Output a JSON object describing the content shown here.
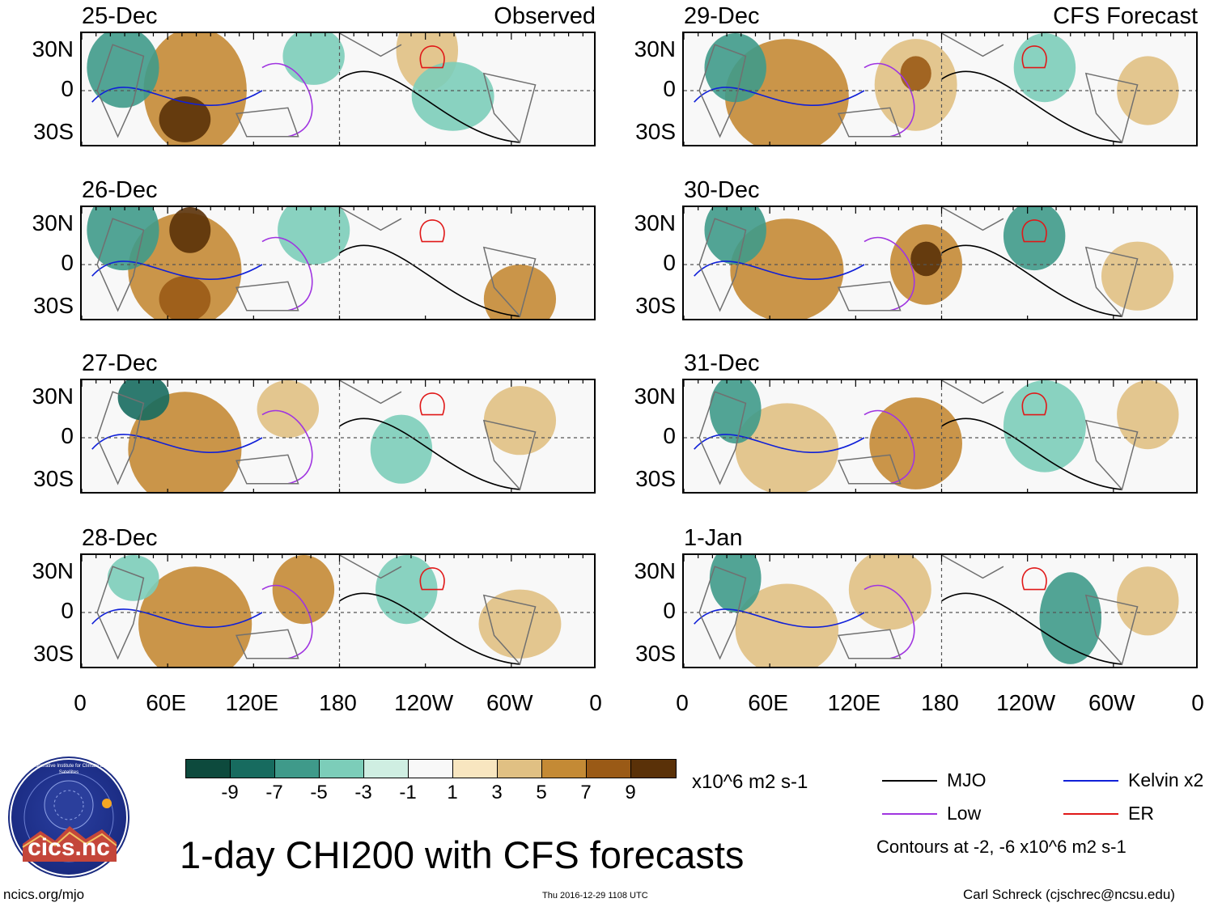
{
  "panels": [
    {
      "date": "25-Dec",
      "header": "Observed"
    },
    {
      "date": "26-Dec",
      "header": ""
    },
    {
      "date": "27-Dec",
      "header": ""
    },
    {
      "date": "28-Dec",
      "header": ""
    },
    {
      "date": "29-Dec",
      "header": "CFS Forecast"
    },
    {
      "date": "30-Dec",
      "header": ""
    },
    {
      "date": "31-Dec",
      "header": ""
    },
    {
      "date": "1-Jan",
      "header": ""
    }
  ],
  "y_ticks": [
    "30N",
    "0",
    "30S"
  ],
  "x_ticks": [
    "0",
    "60E",
    "120E",
    "180",
    "120W",
    "60W",
    "0"
  ],
  "colorbar": {
    "colors": [
      "#0d4a3d",
      "#176b5f",
      "#3f9a8a",
      "#7ccdb9",
      "#cfeee2",
      "#f8f8f8",
      "#f8e6c0",
      "#e0c083",
      "#c48a35",
      "#9a5a16",
      "#5a3108"
    ],
    "labels": [
      "-9",
      "-7",
      "-5",
      "-3",
      "-1",
      "1",
      "3",
      "5",
      "7",
      "9"
    ],
    "units": "x10^6 m2 s-1"
  },
  "legend": {
    "items": [
      {
        "label": "MJO",
        "color": "#000000"
      },
      {
        "label": "Kelvin x2",
        "color": "#1020d8"
      },
      {
        "label": "Low",
        "color": "#a035e0"
      },
      {
        "label": "ER",
        "color": "#e01818"
      }
    ],
    "contours_note": "Contours at -2, -6 x10^6 m2 s-1"
  },
  "title": "1-day CHI200 with CFS forecasts",
  "logo_text": "cics.nc",
  "logo_ring_text": "Cooperative Institute for Climate and Satellites",
  "footer": {
    "left": "ncics.org/mjo",
    "center": "Thu 2016-12-29 1108 UTC",
    "right": "Carl Schreck (cjschrec@ncsu.edu)"
  }
}
